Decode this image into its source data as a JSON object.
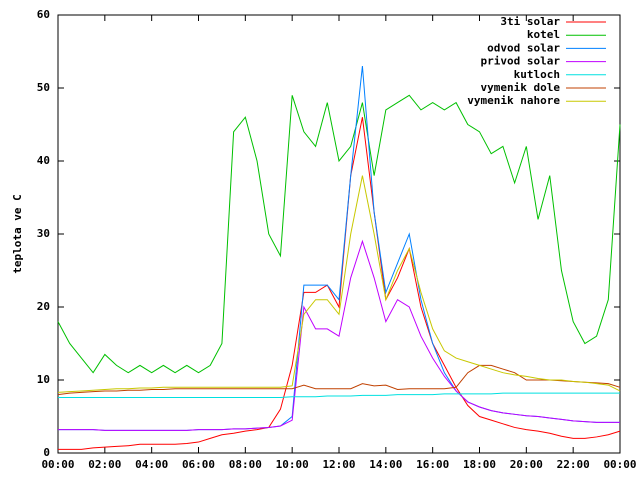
{
  "chart_data": {
    "type": "line",
    "y_label": "teplota ve C",
    "x": [
      0,
      0.5,
      1,
      1.5,
      2,
      2.5,
      3,
      3.5,
      4,
      4.5,
      5,
      5.5,
      6,
      6.5,
      7,
      7.5,
      8,
      8.5,
      9,
      9.5,
      10,
      10.5,
      11,
      11.5,
      12,
      12.5,
      13,
      13.5,
      14,
      14.5,
      15,
      15.5,
      16,
      16.5,
      17,
      17.5,
      18,
      18.5,
      19,
      19.5,
      20,
      20.5,
      21,
      21.5,
      22,
      22.5,
      23,
      23.5,
      24
    ],
    "xlim": [
      0,
      24
    ],
    "xticks": [
      {
        "value": 0,
        "label": "00:00"
      },
      {
        "value": 2,
        "label": "02:00"
      },
      {
        "value": 4,
        "label": "04:00"
      },
      {
        "value": 6,
        "label": "06:00"
      },
      {
        "value": 8,
        "label": "08:00"
      },
      {
        "value": 10,
        "label": "10:00"
      },
      {
        "value": 12,
        "label": "12:00"
      },
      {
        "value": 14,
        "label": "14:00"
      },
      {
        "value": 16,
        "label": "16:00"
      },
      {
        "value": 18,
        "label": "18:00"
      },
      {
        "value": 20,
        "label": "20:00"
      },
      {
        "value": 22,
        "label": "22:00"
      },
      {
        "value": 24,
        "label": "00:00"
      }
    ],
    "ylim": [
      0,
      60
    ],
    "yticks": [
      0,
      10,
      20,
      30,
      40,
      50,
      60
    ],
    "legend": "top-right",
    "series": [
      {
        "name": "3ti solar",
        "color": "#ff0000",
        "values": [
          0.5,
          0.5,
          0.5,
          0.7,
          0.8,
          0.9,
          1,
          1.2,
          1.2,
          1.2,
          1.2,
          1.3,
          1.5,
          2,
          2.5,
          2.7,
          3,
          3.2,
          3.5,
          6,
          12,
          22,
          22,
          23,
          20,
          38,
          46,
          33,
          21,
          24,
          28,
          20,
          15,
          12,
          9,
          6.5,
          5,
          4.5,
          4,
          3.5,
          3.2,
          3,
          2.7,
          2.3,
          2,
          2,
          2.2,
          2.5,
          3
        ]
      },
      {
        "name": "kotel",
        "color": "#00c000",
        "values": [
          18,
          15,
          13,
          11,
          13.5,
          12,
          11,
          12,
          11,
          12,
          11,
          12,
          11,
          12,
          15,
          44,
          46,
          40,
          30,
          27,
          49,
          44,
          42,
          48,
          40,
          42,
          48,
          38,
          47,
          48,
          49,
          47,
          48,
          47,
          48,
          45,
          44,
          41,
          42,
          37,
          42,
          32,
          38,
          25,
          18,
          15,
          16,
          21,
          45
        ]
      },
      {
        "name": "odvod solar",
        "color": "#0080ff",
        "values": [
          3.2,
          3.2,
          3.2,
          3.2,
          3.1,
          3.1,
          3.1,
          3.1,
          3.1,
          3.1,
          3.1,
          3.1,
          3.2,
          3.2,
          3.2,
          3.3,
          3.3,
          3.4,
          3.5,
          3.7,
          5,
          23,
          23,
          23,
          21,
          38,
          53,
          33,
          22,
          26,
          30,
          21,
          15,
          11,
          8.5,
          7,
          6.3,
          5.8,
          5.5,
          5.3,
          5.1,
          5,
          4.8,
          4.6,
          4.4,
          4.3,
          4.2,
          4.2,
          4.2
        ]
      },
      {
        "name": "privod solar",
        "color": "#c000ff",
        "values": [
          3.2,
          3.2,
          3.2,
          3.2,
          3.1,
          3.1,
          3.1,
          3.1,
          3.1,
          3.1,
          3.1,
          3.1,
          3.2,
          3.2,
          3.2,
          3.3,
          3.3,
          3.4,
          3.5,
          3.7,
          4.5,
          20,
          17,
          17,
          16,
          24,
          29,
          24,
          18,
          21,
          20,
          16,
          13,
          10.5,
          8.5,
          7,
          6.3,
          5.8,
          5.5,
          5.3,
          5.1,
          5,
          4.8,
          4.6,
          4.4,
          4.3,
          4.2,
          4.2,
          4.2
        ]
      },
      {
        "name": "kutloch",
        "color": "#00e0e0",
        "values": [
          7.6,
          7.6,
          7.6,
          7.6,
          7.6,
          7.6,
          7.6,
          7.6,
          7.6,
          7.6,
          7.6,
          7.6,
          7.6,
          7.6,
          7.6,
          7.6,
          7.6,
          7.6,
          7.6,
          7.6,
          7.7,
          7.7,
          7.7,
          7.8,
          7.8,
          7.8,
          7.9,
          7.9,
          7.9,
          8,
          8,
          8,
          8,
          8.1,
          8.1,
          8.1,
          8.1,
          8.1,
          8.2,
          8.2,
          8.2,
          8.2,
          8.2,
          8.2,
          8.2,
          8.2,
          8.2,
          8.2,
          8.2
        ]
      },
      {
        "name": "vymenik dole",
        "color": "#c04000",
        "values": [
          8,
          8.2,
          8.3,
          8.4,
          8.5,
          8.5,
          8.6,
          8.6,
          8.7,
          8.7,
          8.8,
          8.8,
          8.8,
          8.8,
          8.8,
          8.8,
          8.8,
          8.8,
          8.8,
          8.8,
          8.8,
          9.3,
          8.8,
          8.8,
          8.8,
          8.8,
          9.5,
          9.2,
          9.3,
          8.7,
          8.8,
          8.8,
          8.8,
          8.8,
          9,
          11,
          12,
          12,
          11.5,
          11,
          10,
          10,
          10,
          9.9,
          9.8,
          9.7,
          9.6,
          9.5,
          9
        ]
      },
      {
        "name": "vymenik nahore",
        "color": "#c8c800",
        "values": [
          8.3,
          8.4,
          8.5,
          8.6,
          8.7,
          8.8,
          8.8,
          8.9,
          8.9,
          9,
          9,
          9,
          9,
          9,
          9,
          9,
          9,
          9,
          9,
          9,
          9.2,
          19,
          21,
          21,
          19,
          30,
          38,
          30,
          21,
          25,
          28,
          22,
          17,
          14,
          13,
          12.5,
          12,
          11.5,
          11,
          10.7,
          10.5,
          10.2,
          10,
          10,
          9.8,
          9.7,
          9.5,
          9.3,
          8.5
        ]
      }
    ]
  }
}
